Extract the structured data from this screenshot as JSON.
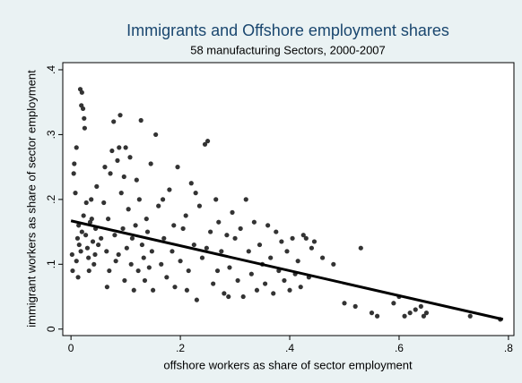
{
  "chart_data": {
    "type": "scatter",
    "title": "Immigrants and Offshore employment shares",
    "subtitle": "58 manufacturing Sectors,  2000-2007",
    "x_label": "offshore workers as share of sector employment",
    "y_label": "immigrant workers as share of sector employment",
    "color": "#333333",
    "xlim": [
      -0.015,
      0.81
    ],
    "ylim": [
      -0.01,
      0.411
    ],
    "xticks": [
      0,
      {
        "value": 0.2,
        "label": ".2"
      },
      {
        "value": 0.4,
        "label": ".4"
      },
      {
        "value": 0.6,
        "label": ".6"
      },
      {
        "value": 0.8,
        "label": ".8"
      }
    ],
    "yticks": [
      0,
      {
        "value": 0.1,
        "label": ".1"
      },
      {
        "value": 0.2,
        "label": ".2"
      },
      {
        "value": 0.3,
        "label": ".3"
      },
      {
        "value": 0.4,
        "label": ".4"
      }
    ],
    "x": [
      0.002,
      0.003,
      0.005,
      0.006,
      0.008,
      0.01,
      0.012,
      0.014,
      0.015,
      0.017,
      0.019,
      0.02,
      0.022,
      0.024,
      0.025,
      0.018,
      0.02,
      0.023,
      0.027,
      0.03,
      0.032,
      0.035,
      0.037,
      0.04,
      0.042,
      0.045,
      0.047,
      0.05,
      0.01,
      0.013,
      0.028,
      0.033,
      0.038,
      0.044,
      0.055,
      0.06,
      0.062,
      0.065,
      0.068,
      0.07,
      0.072,
      0.075,
      0.078,
      0.08,
      0.082,
      0.085,
      0.088,
      0.09,
      0.092,
      0.095,
      0.098,
      0.1,
      0.102,
      0.105,
      0.108,
      0.11,
      0.112,
      0.115,
      0.118,
      0.12,
      0.123,
      0.125,
      0.128,
      0.13,
      0.133,
      0.135,
      0.138,
      0.14,
      0.143,
      0.146,
      0.148,
      0.066,
      0.087,
      0.097,
      0.15,
      0.155,
      0.16,
      0.165,
      0.17,
      0.175,
      0.18,
      0.185,
      0.19,
      0.195,
      0.2,
      0.205,
      0.21,
      0.215,
      0.22,
      0.225,
      0.23,
      0.235,
      0.24,
      0.245,
      0.25,
      0.255,
      0.26,
      0.265,
      0.27,
      0.275,
      0.28,
      0.285,
      0.29,
      0.295,
      0.168,
      0.188,
      0.212,
      0.228,
      0.248,
      0.268,
      0.288,
      0.3,
      0.305,
      0.31,
      0.315,
      0.32,
      0.325,
      0.33,
      0.335,
      0.34,
      0.345,
      0.35,
      0.355,
      0.36,
      0.365,
      0.37,
      0.375,
      0.38,
      0.385,
      0.39,
      0.395,
      0.4,
      0.405,
      0.41,
      0.415,
      0.42,
      0.425,
      0.43,
      0.435,
      0.44,
      0.445,
      0.46,
      0.48,
      0.5,
      0.52,
      0.53,
      0.55,
      0.56,
      0.59,
      0.6,
      0.61,
      0.62,
      0.63,
      0.64,
      0.645,
      0.65,
      0.73,
      0.785
    ],
    "values": [
      0.115,
      0.09,
      0.24,
      0.255,
      0.21,
      0.28,
      0.14,
      0.16,
      0.13,
      0.37,
      0.345,
      0.365,
      0.34,
      0.325,
      0.31,
      0.12,
      0.15,
      0.175,
      0.145,
      0.125,
      0.11,
      0.165,
      0.2,
      0.135,
      0.1,
      0.155,
      0.22,
      0.13,
      0.105,
      0.08,
      0.195,
      0.09,
      0.17,
      0.115,
      0.14,
      0.195,
      0.25,
      0.12,
      0.17,
      0.09,
      0.24,
      0.275,
      0.32,
      0.145,
      0.105,
      0.26,
      0.28,
      0.33,
      0.21,
      0.155,
      0.075,
      0.28,
      0.125,
      0.185,
      0.265,
      0.1,
      0.14,
      0.06,
      0.16,
      0.23,
      0.09,
      0.2,
      0.322,
      0.13,
      0.11,
      0.075,
      0.17,
      0.15,
      0.095,
      0.255,
      0.12,
      0.065,
      0.115,
      0.235,
      0.06,
      0.3,
      0.19,
      0.1,
      0.14,
      0.08,
      0.215,
      0.12,
      0.065,
      0.25,
      0.105,
      0.155,
      0.175,
      0.09,
      0.225,
      0.13,
      0.045,
      0.19,
      0.11,
      0.285,
      0.29,
      0.15,
      0.07,
      0.2,
      0.165,
      0.12,
      0.055,
      0.145,
      0.095,
      0.18,
      0.2,
      0.16,
      0.06,
      0.21,
      0.125,
      0.09,
      0.05,
      0.14,
      0.075,
      0.155,
      0.05,
      0.2,
      0.12,
      0.085,
      0.165,
      0.06,
      0.13,
      0.1,
      0.07,
      0.16,
      0.11,
      0.055,
      0.15,
      0.09,
      0.135,
      0.075,
      0.12,
      0.06,
      0.14,
      0.085,
      0.105,
      0.065,
      0.145,
      0.14,
      0.08,
      0.125,
      0.135,
      0.11,
      0.1,
      0.04,
      0.035,
      0.125,
      0.025,
      0.02,
      0.04,
      0.05,
      0.02,
      0.025,
      0.03,
      0.035,
      0.02,
      0.025,
      0.02,
      0.015
    ],
    "fit": {
      "color": "#000000",
      "x": [
        0,
        0.79
      ],
      "values": [
        0.167,
        0.015
      ]
    }
  }
}
